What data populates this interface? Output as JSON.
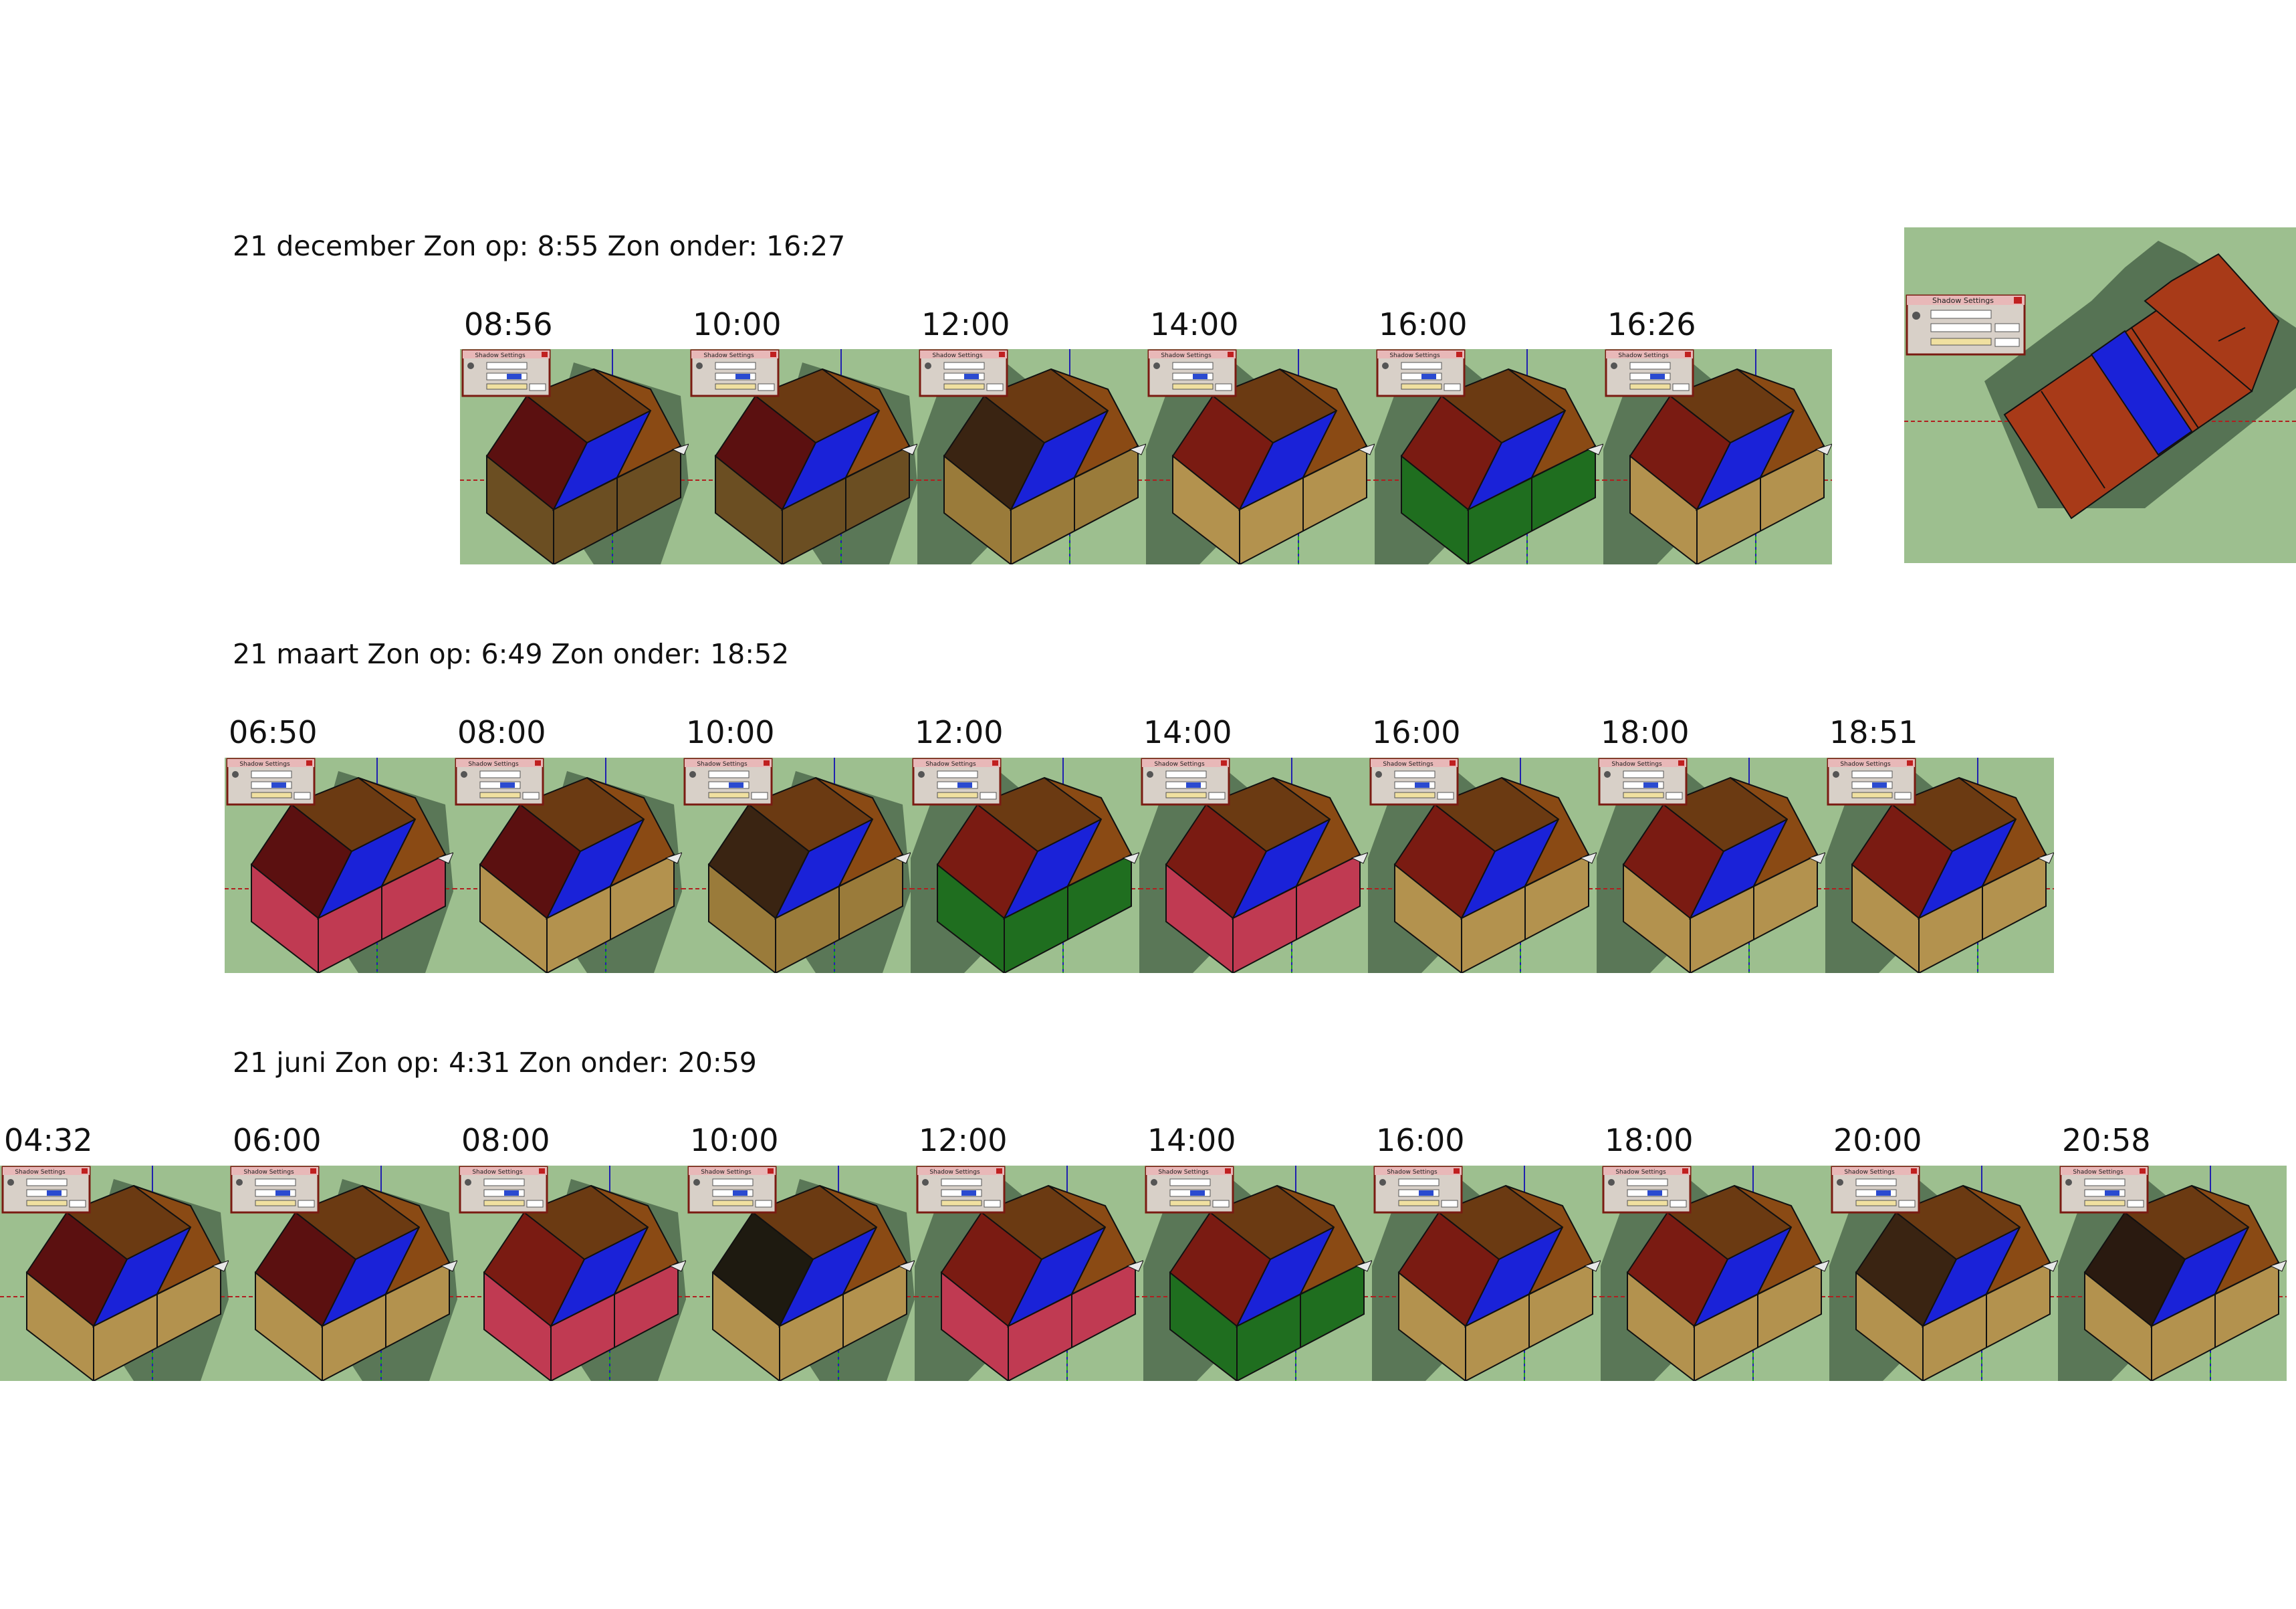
{
  "rows": [
    {
      "title": "21 december Zon op: 8:55 Zon onder: 16:27",
      "times": [
        "08:56",
        "10:00",
        "12:00",
        "14:00",
        "16:00",
        "16:26"
      ],
      "panels": [
        {
          "south": "#6b4e22",
          "west": "#5b1010",
          "shadow": "right"
        },
        {
          "south": "#6b4e22",
          "west": "#5b1010",
          "shadow": "right"
        },
        {
          "south": "#9a7b3a",
          "west": "#3a2412",
          "shadow": "left"
        },
        {
          "south": "#b3924e",
          "west": "#7a1b12",
          "shadow": "left"
        },
        {
          "south": "#1f6e1f",
          "west": "#7a1b12",
          "shadow": "left"
        },
        {
          "south": "#b3924e",
          "west": "#7a1b12",
          "shadow": "left"
        }
      ]
    },
    {
      "title": "21 maart Zon op: 6:49 Zon onder: 18:52",
      "times": [
        "06:50",
        "08:00",
        "10:00",
        "12:00",
        "14:00",
        "16:00",
        "18:00",
        "18:51"
      ],
      "panels": [
        {
          "south": "#c03a52",
          "west": "#5b1010",
          "shadow": "right"
        },
        {
          "south": "#b3924e",
          "west": "#5b1010",
          "shadow": "right"
        },
        {
          "south": "#9a7b3a",
          "west": "#3a2412",
          "shadow": "right"
        },
        {
          "south": "#1f6e1f",
          "west": "#7a1b12",
          "shadow": "left"
        },
        {
          "south": "#c03a52",
          "west": "#7a1b12",
          "shadow": "left"
        },
        {
          "south": "#b3924e",
          "west": "#7a1b12",
          "shadow": "left"
        },
        {
          "south": "#b3924e",
          "west": "#7a1b12",
          "shadow": "left"
        },
        {
          "south": "#b3924e",
          "west": "#7a1b12",
          "shadow": "left"
        }
      ]
    },
    {
      "title": "21 juni Zon op: 4:31 Zon onder: 20:59",
      "times": [
        "04:32",
        "06:00",
        "08:00",
        "10:00",
        "12:00",
        "14:00",
        "16:00",
        "18:00",
        "20:00",
        "20:58"
      ],
      "panels": [
        {
          "south": "#b3924e",
          "west": "#5b1010",
          "shadow": "right"
        },
        {
          "south": "#b3924e",
          "west": "#5b1010",
          "shadow": "right"
        },
        {
          "south": "#c03a52",
          "west": "#7a1b12",
          "shadow": "right"
        },
        {
          "south": "#b3924e",
          "west": "#1e1a10",
          "shadow": "right"
        },
        {
          "south": "#c03a52",
          "west": "#7a1b12",
          "shadow": "left"
        },
        {
          "south": "#1f6e1f",
          "west": "#7a1b12",
          "shadow": "left"
        },
        {
          "south": "#b3924e",
          "west": "#7a1b12",
          "shadow": "left"
        },
        {
          "south": "#b3924e",
          "west": "#7a1b12",
          "shadow": "left"
        },
        {
          "south": "#b3924e",
          "west": "#3a2412",
          "shadow": "left"
        },
        {
          "south": "#b3924e",
          "west": "#2a1a10",
          "shadow": "left"
        }
      ]
    }
  ],
  "dialog_title": "Shadow Settings",
  "colors": {
    "ground": "#9dbf8f",
    "shadow": "#4f6a4e",
    "panel_roof": "#1a22d8",
    "east_roof": "#8a4a14",
    "axis_red": "#b02020",
    "axis_green": "#20a020",
    "axis_blue": "#2020b0"
  }
}
